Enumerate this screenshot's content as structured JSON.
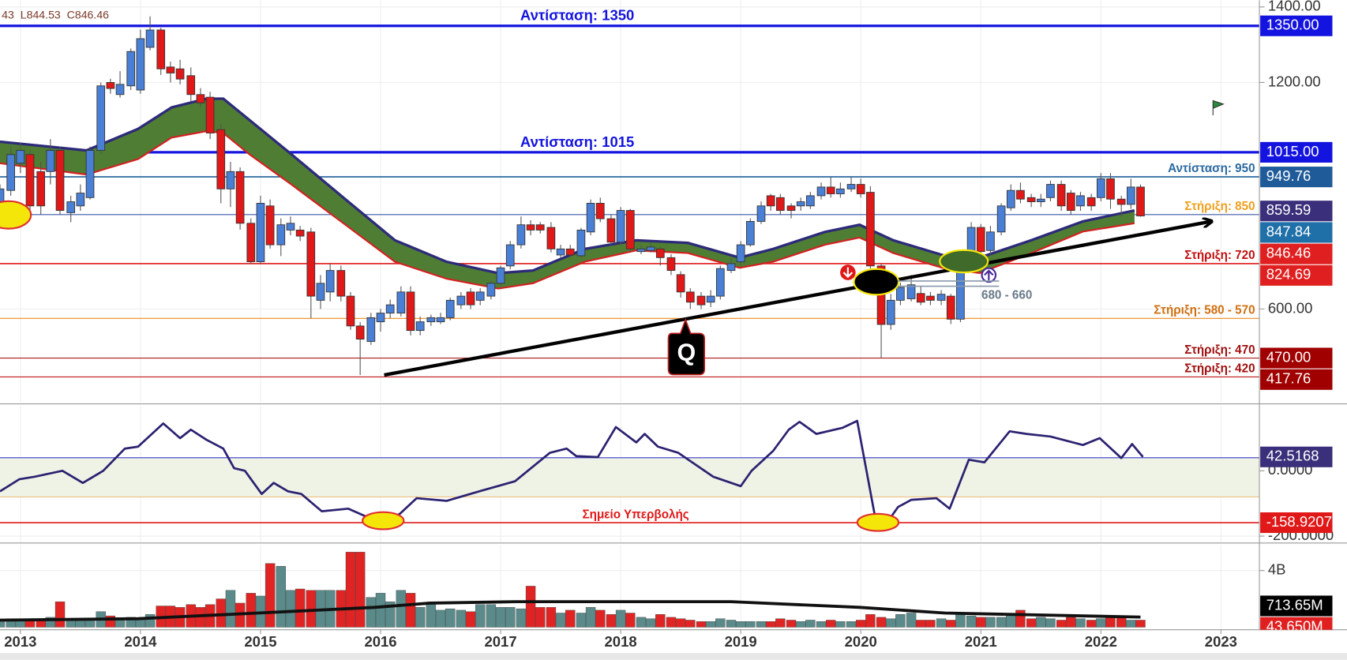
{
  "chart_data": [
    {
      "type": "candlestick",
      "readout": "43  L844.53  C846.46",
      "xlim": [
        2012.83,
        2023.32
      ],
      "ylim": [
        360,
        1418
      ],
      "yticks": [
        {
          "value": 1400,
          "label": "1400.00"
        },
        {
          "value": 1200,
          "label": "1200.00"
        },
        {
          "value": 600,
          "label": "600.00"
        }
      ],
      "up_color": "#4a7fd6",
      "down_color": "#e01818",
      "x": [
        2012.83,
        2012.92,
        2013.0,
        2013.08,
        2013.17,
        2013.25,
        2013.33,
        2013.42,
        2013.5,
        2013.58,
        2013.67,
        2013.75,
        2013.83,
        2013.92,
        2014.0,
        2014.08,
        2014.17,
        2014.25,
        2014.33,
        2014.42,
        2014.5,
        2014.58,
        2014.67,
        2014.75,
        2014.83,
        2014.92,
        2015.0,
        2015.08,
        2015.17,
        2015.25,
        2015.33,
        2015.42,
        2015.5,
        2015.58,
        2015.67,
        2015.75,
        2015.83,
        2015.92,
        2016.0,
        2016.08,
        2016.17,
        2016.25,
        2016.33,
        2016.42,
        2016.5,
        2016.58,
        2016.67,
        2016.75,
        2016.83,
        2016.92,
        2017.0,
        2017.08,
        2017.17,
        2017.25,
        2017.33,
        2017.42,
        2017.5,
        2017.58,
        2017.67,
        2017.75,
        2017.83,
        2017.92,
        2018.0,
        2018.08,
        2018.17,
        2018.25,
        2018.33,
        2018.42,
        2018.5,
        2018.58,
        2018.67,
        2018.75,
        2018.83,
        2018.92,
        2019.0,
        2019.08,
        2019.17,
        2019.25,
        2019.33,
        2019.42,
        2019.5,
        2019.58,
        2019.67,
        2019.75,
        2019.83,
        2019.92,
        2020.0,
        2020.08,
        2020.17,
        2020.25,
        2020.33,
        2020.42,
        2020.5,
        2020.58,
        2020.67,
        2020.75,
        2020.83,
        2020.92,
        2021.0,
        2021.08,
        2021.17,
        2021.25,
        2021.33,
        2021.42,
        2021.5,
        2021.58,
        2021.67,
        2021.75,
        2021.83,
        2021.92,
        2022.0,
        2022.08,
        2022.17,
        2022.25,
        2022.33
      ],
      "open": [
        850,
        914,
        986,
        1009,
        964,
        964,
        1020,
        855,
        873,
        895,
        1020,
        1200,
        1168,
        1191,
        1180,
        1293,
        1339,
        1241,
        1236,
        1218,
        1168,
        1161,
        1075,
        918,
        964,
        827,
        725,
        873,
        770,
        809,
        809,
        804,
        623,
        645,
        702,
        634,
        555,
        514,
        566,
        589,
        589,
        645,
        543,
        566,
        566,
        577,
        611,
        645,
        623,
        634,
        668,
        714,
        770,
        823,
        823,
        816,
        743,
        759,
        741,
        804,
        880,
        839,
        777,
        861,
        752,
        755,
        759,
        736,
        691,
        645,
        634,
        618,
        634,
        702,
        725,
        770,
        832,
        900,
        895,
        873,
        873,
        873,
        900,
        923,
        905,
        918,
        930,
        909,
        714,
        559,
        623,
        627,
        641,
        634,
        623,
        634,
        573,
        736,
        816,
        755,
        804,
        868,
        914,
        895,
        884,
        895,
        930,
        907,
        873,
        895,
        895,
        945,
        891,
        877,
        923
      ],
      "high": [
        930,
        1030,
        1040,
        1020,
        990,
        1050,
        1030,
        900,
        930,
        1030,
        1200,
        1210,
        1230,
        1290,
        1340,
        1375,
        1345,
        1255,
        1260,
        1240,
        1185,
        1175,
        1090,
        990,
        975,
        840,
        900,
        890,
        840,
        845,
        820,
        815,
        690,
        720,
        715,
        645,
        565,
        590,
        600,
        625,
        660,
        660,
        580,
        585,
        590,
        630,
        645,
        655,
        655,
        675,
        715,
        780,
        845,
        835,
        830,
        830,
        770,
        770,
        815,
        890,
        895,
        850,
        870,
        865,
        770,
        775,
        765,
        745,
        700,
        655,
        645,
        650,
        715,
        735,
        780,
        840,
        885,
        905,
        905,
        880,
        895,
        910,
        935,
        950,
        935,
        950,
        945,
        925,
        720,
        640,
        670,
        690,
        660,
        645,
        650,
        640,
        745,
        830,
        825,
        820,
        880,
        930,
        935,
        905,
        905,
        940,
        940,
        915,
        910,
        905,
        960,
        960,
        900,
        945,
        930
      ],
      "low": [
        840,
        900,
        960,
        860,
        850,
        930,
        850,
        830,
        860,
        890,
        1010,
        1170,
        1160,
        1180,
        1170,
        1285,
        1220,
        1200,
        1195,
        1150,
        1135,
        1050,
        880,
        870,
        810,
        720,
        720,
        760,
        740,
        795,
        780,
        575,
        600,
        620,
        620,
        545,
        425,
        505,
        540,
        575,
        580,
        530,
        530,
        555,
        560,
        570,
        600,
        600,
        610,
        625,
        660,
        705,
        760,
        795,
        800,
        750,
        735,
        735,
        735,
        795,
        830,
        770,
        770,
        750,
        745,
        750,
        715,
        690,
        630,
        600,
        600,
        605,
        625,
        695,
        715,
        765,
        825,
        860,
        850,
        840,
        860,
        865,
        890,
        895,
        895,
        910,
        895,
        700,
        470,
        545,
        610,
        620,
        610,
        610,
        610,
        560,
        565,
        725,
        740,
        745,
        795,
        860,
        880,
        870,
        870,
        885,
        860,
        850,
        860,
        860,
        885,
        865,
        845,
        865,
        844.53
      ],
      "close": [
        918,
        1009,
        1020,
        873,
        873,
        1020,
        861,
        884,
        907,
        1020,
        1191,
        1184,
        1195,
        1282,
        1316,
        1339,
        1236,
        1225,
        1209,
        1168,
        1146,
        1066,
        918,
        964,
        827,
        725,
        880,
        770,
        823,
        827,
        793,
        634,
        668,
        702,
        634,
        555,
        520,
        577,
        589,
        611,
        645,
        543,
        566,
        577,
        577,
        623,
        634,
        611,
        645,
        668,
        709,
        770,
        823,
        809,
        809,
        759,
        759,
        743,
        809,
        880,
        839,
        777,
        861,
        759,
        759,
        764,
        736,
        702,
        645,
        618,
        611,
        634,
        707,
        720,
        770,
        832,
        873,
        873,
        861,
        861,
        884,
        900,
        923,
        905,
        918,
        930,
        905,
        714,
        559,
        623,
        657,
        664,
        618,
        623,
        639,
        573,
        736,
        816,
        752,
        804,
        873,
        914,
        891,
        884,
        891,
        930,
        873,
        861,
        900,
        873,
        945,
        891,
        877,
        923,
        846.46
      ],
      "ribbon": {
        "fill": "#4f7d33",
        "upper_color": "#2d2a7a",
        "lower_color": "#d42020",
        "x": [
          2012.83,
          2013.55,
          2013.98,
          2014.26,
          2014.55,
          2014.69,
          2014.91,
          2015.26,
          2015.69,
          2016.12,
          2016.55,
          2016.98,
          2017.27,
          2017.7,
          2018.13,
          2018.56,
          2018.99,
          2019.27,
          2019.7,
          2019.99,
          2020.27,
          2020.7,
          2020.99,
          2021.42,
          2021.85,
          2022.28
        ],
        "upper": [
          1043,
          1020,
          1077,
          1134,
          1157,
          1157,
          1100,
          1009,
          895,
          782,
          725,
          695,
          702,
          759,
          782,
          775,
          736,
          759,
          804,
          823,
          782,
          741,
          736,
          782,
          832,
          861
        ],
        "lower": [
          986,
          956,
          997,
          1054,
          1071,
          1066,
          1009,
          929,
          827,
          725,
          680,
          654,
          668,
          725,
          755,
          748,
          709,
          725,
          770,
          789,
          748,
          707,
          695,
          748,
          805,
          827
        ]
      },
      "trendline": {
        "color": "#000000",
        "x": [
          2016.03,
          2022.92
        ],
        "y": [
          425,
          832
        ]
      },
      "levels": [
        {
          "value": 1350,
          "label": "Αντίσταση: 1350",
          "color": "#1414e0",
          "label_color": "#1414e0",
          "width": 3
        },
        {
          "value": 1015,
          "label": "Αντίσταση: 1015",
          "color": "#1414e0",
          "label_color": "#1414e0",
          "width": 3
        },
        {
          "value": 950,
          "label": "Αντίσταση: 950",
          "color": "#2b6aa0",
          "label_color": "#2b6aa0",
          "width": 1.5
        },
        {
          "value": 850,
          "label": "Στήριξη: 850",
          "color": "#3a56a8",
          "label_color": "#f0a020",
          "width": 1
        },
        {
          "value": 720,
          "label": "Στήριξη: 720",
          "color": "#e01818",
          "label_color": "#c01010",
          "width": 1.5
        },
        {
          "value": 575,
          "label": "Στήριξη: 580 - 570",
          "color": "#f08a20",
          "label_color": "#d07010",
          "width": 1
        },
        {
          "value": 470,
          "label": "Στήριξη: 470",
          "color": "#b01818",
          "label_color": "#a01010",
          "width": 1
        },
        {
          "value": 420,
          "label": "Στήριξη: 420",
          "color": "#c01818",
          "label_color": "#a01010",
          "width": 1
        }
      ],
      "tags": [
        {
          "value": 1350,
          "label": "1350.00",
          "color": "#1414e0"
        },
        {
          "value": 1015,
          "label": "1015.00",
          "color": "#1414e0"
        },
        {
          "value": 949.76,
          "label": "949.76",
          "color": "#1f5b99"
        },
        {
          "value": 859.59,
          "label": "859.59",
          "color": "#3a2f7a"
        },
        {
          "value": 847.84,
          "label": "847.84",
          "color": "#1f6fa8"
        },
        {
          "value": 846.46,
          "label": "846.46",
          "color": "#e02020"
        },
        {
          "value": 824.69,
          "label": "824.69",
          "color": "#e02020"
        },
        {
          "value": 470,
          "label": "470.00",
          "color": "#a00000"
        },
        {
          "value": 417.76,
          "label": "417.76",
          "color": "#a00000"
        }
      ],
      "annotations": [
        "680 - 660",
        "Q"
      ]
    },
    {
      "type": "line",
      "color": "#2b2270",
      "ylim": [
        -216,
        184
      ],
      "yticks": [
        {
          "value": 0,
          "label": "0.0000"
        },
        {
          "value": -200,
          "label": "-200.0000"
        }
      ],
      "x": [
        2012.83,
        2012.99,
        2013.12,
        2013.35,
        2013.52,
        2013.69,
        2013.87,
        2013.98,
        2014.19,
        2014.33,
        2014.42,
        2014.55,
        2014.69,
        2014.78,
        2014.87,
        2015.01,
        2015.11,
        2015.23,
        2015.34,
        2015.51,
        2015.73,
        2015.94,
        2016.03,
        2016.16,
        2016.3,
        2016.55,
        2016.84,
        2017.12,
        2017.41,
        2017.55,
        2017.63,
        2017.81,
        2017.96,
        2018.13,
        2018.2,
        2018.31,
        2018.48,
        2018.77,
        2019.0,
        2019.09,
        2019.27,
        2019.4,
        2019.49,
        2019.63,
        2019.85,
        2019.97,
        2020.13,
        2020.22,
        2020.31,
        2020.42,
        2020.63,
        2020.74,
        2020.9,
        2021.03,
        2021.24,
        2021.38,
        2021.58,
        2021.85,
        2021.99,
        2022.17,
        2022.26,
        2022.35
      ],
      "values": [
        -63,
        -26,
        -18,
        0,
        -37,
        0,
        68,
        74,
        145,
        100,
        126,
        95,
        68,
        8,
        0,
        -71,
        -37,
        -63,
        -71,
        -124,
        -116,
        -150,
        -155,
        -132,
        -84,
        -92,
        -61,
        -32,
        55,
        68,
        45,
        42,
        134,
        87,
        113,
        74,
        55,
        -18,
        -47,
        0,
        61,
        126,
        150,
        113,
        132,
        153,
        -163,
        -158,
        -111,
        -89,
        -84,
        -116,
        34,
        26,
        121,
        113,
        105,
        79,
        100,
        39,
        82,
        42.5168
      ],
      "band_color": "#eef3e6",
      "levels": [
        {
          "value": 40,
          "color": "#3a3acc",
          "width": 1
        },
        {
          "value": -80,
          "color": "#f0c080",
          "width": 1
        },
        {
          "value": -158.9207,
          "label": "Σημείο Υπερβολής",
          "color": "#e01818",
          "label_color": "#e01818",
          "width": 1.5
        }
      ],
      "tags": [
        {
          "value": 42.5168,
          "color": "#3a2f7a"
        },
        {
          "value": -158.9207,
          "color": "#e01818"
        }
      ]
    },
    {
      "type": "bar",
      "up_color": "#5a8a8a",
      "down_color": "#e02424",
      "ylim": [
        0,
        5700000000
      ],
      "yticks": [
        {
          "value": 4000000000,
          "label": "4B"
        }
      ],
      "xticks": [
        2013,
        2014,
        2015,
        2016,
        2017,
        2018,
        2019,
        2020,
        2021,
        2022,
        2023
      ],
      "values": [
        500000000,
        600000000,
        500000000,
        600000000,
        500000000,
        700000000,
        1800000000,
        600000000,
        500000000,
        600000000,
        1100000000,
        800000000,
        600000000,
        700000000,
        600000000,
        900000000,
        1500000000,
        1500000000,
        1400000000,
        1600000000,
        1400000000,
        1600000000,
        2000000000,
        2600000000,
        1700000000,
        2400000000,
        2200000000,
        4500000000,
        4300000000,
        2600000000,
        2700000000,
        2600000000,
        2600000000,
        2600000000,
        2600000000,
        5300000000,
        5300000000,
        2100000000,
        2400000000,
        1800000000,
        2600000000,
        2400000000,
        1400000000,
        1700000000,
        1200000000,
        1300000000,
        1200000000,
        1100000000,
        1600000000,
        1600000000,
        1400000000,
        1400000000,
        1300000000,
        2900000000,
        1400000000,
        1400000000,
        1000000000,
        1200000000,
        1000000000,
        1400000000,
        1200000000,
        900000000,
        1200000000,
        1000000000,
        700000000,
        600000000,
        900000000,
        700000000,
        600000000,
        500000000,
        400000000,
        400000000,
        600000000,
        500000000,
        400000000,
        400000000,
        400000000,
        400000000,
        600000000,
        500000000,
        400000000,
        500000000,
        400000000,
        500000000,
        400000000,
        400000000,
        500000000,
        900000000,
        700000000,
        600000000,
        900000000,
        1000000000,
        500000000,
        500000000,
        600000000,
        500000000,
        900000000,
        800000000,
        700000000,
        700000000,
        700000000,
        900000000,
        1200000000,
        600000000,
        700000000,
        600000000,
        500000000,
        700000000,
        600000000,
        500000000,
        600000000,
        700000000,
        700000000,
        500000000,
        500000000
      ],
      "ma": {
        "color": "#111111",
        "x": [
          2012.83,
          2013.98,
          2014.98,
          2015.95,
          2016.41,
          2017.13,
          2018.92,
          2019.99,
          2020.7,
          2022.33
        ],
        "values": [
          500000000,
          600000000,
          1000000000,
          1400000000,
          1700000000,
          1800000000,
          1800000000,
          1400000000,
          1000000000,
          713650000
        ]
      },
      "tags": [
        {
          "value": 713650000,
          "label": "713.65M",
          "color": "#000000"
        },
        {
          "value": 43650000,
          "label": "43.650M",
          "color": "#e02020"
        }
      ]
    }
  ]
}
